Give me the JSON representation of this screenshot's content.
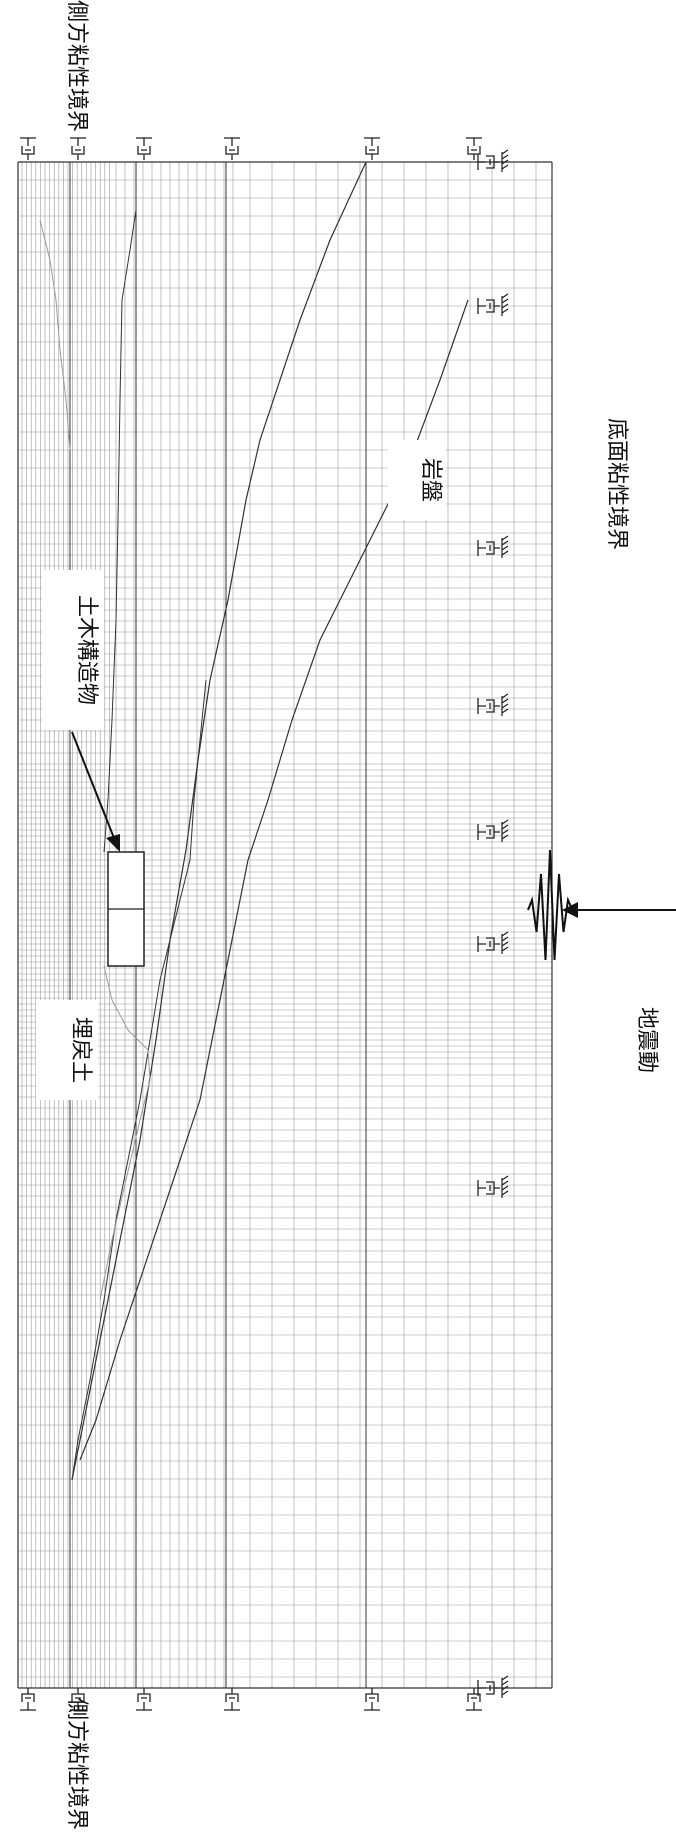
{
  "labels": {
    "side_boundary_top": "側方粘性境界",
    "side_boundary_bottom": "側方粘性境界",
    "bottom_boundary": "底面粘性境界",
    "bedrock": "岩盤",
    "structure": "土木構造物",
    "backfill": "埋戻土",
    "ground_motion": "地震動"
  },
  "icons": {
    "dashpot": "viscous-dashpot-icon",
    "fixed_support": "ground-hatch-icon",
    "seismic_wave": "seismic-wave-icon",
    "pointer_arrow": "arrow-icon"
  },
  "colors": {
    "mesh_line": "#9a9a9a",
    "strong_line": "#333333",
    "background": "#ffffff"
  }
}
